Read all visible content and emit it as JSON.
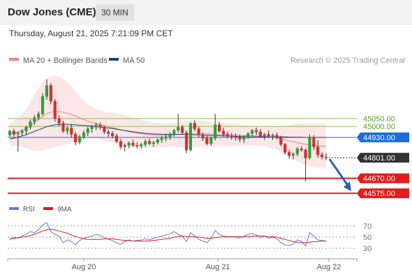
{
  "header": {
    "title": "Dow Jones (CME)",
    "interval": "30 MIN"
  },
  "datetime": "Thursday, August 21, 2025 7:21:09 PM CET",
  "legend": {
    "bollinger_label": "MA 20 + Bollinger Bands",
    "ma50_label": "MA 50",
    "bollinger_color": "#f08080",
    "ma50_color": "#1f3f7f"
  },
  "copyright": "Research © 2025 Trading Central",
  "colors": {
    "up": "#2e9e3e",
    "down": "#d32f2f",
    "resistance": "#8bc34a",
    "support": "#e31b1b",
    "current_tag": "#333333",
    "ma50_tag": "#1a6ce0",
    "arrow": "#2f5fa8"
  },
  "chart_data": [
    {
      "type": "candlestick",
      "x_ticks": [
        "Aug 20",
        "Aug 21",
        "Aug 22"
      ],
      "ylim": [
        44540,
        45360
      ],
      "price_levels": [
        {
          "value": 45050,
          "label": "45050.00",
          "kind": "resistance"
        },
        {
          "value": 45000,
          "label": "45000.00",
          "kind": "resistance"
        },
        {
          "value": 44930,
          "label": "44930.00",
          "kind": "ma50"
        },
        {
          "value": 44801,
          "label": "44801.00",
          "kind": "current"
        },
        {
          "value": 44670,
          "label": "44670.00",
          "kind": "support"
        },
        {
          "value": 44575,
          "label": "44575.00",
          "kind": "support"
        }
      ],
      "candles": [
        [
          44945,
          44978,
          44935,
          44970
        ],
        [
          44970,
          44985,
          44935,
          44950
        ],
        [
          44950,
          44965,
          44840,
          44960
        ],
        [
          44960,
          44982,
          44940,
          44970
        ],
        [
          44970,
          45005,
          44945,
          44995
        ],
        [
          44995,
          45045,
          44980,
          45030
        ],
        [
          45030,
          45070,
          45010,
          45055
        ],
        [
          45055,
          45095,
          45040,
          45080
        ],
        [
          45080,
          45210,
          45070,
          45190
        ],
        [
          45190,
          45300,
          45170,
          45260
        ],
        [
          45260,
          45275,
          45140,
          45160
        ],
        [
          45160,
          45175,
          45030,
          45050
        ],
        [
          45050,
          45070,
          45000,
          45020
        ],
        [
          45020,
          45035,
          44960,
          44970
        ],
        [
          44970,
          45000,
          44950,
          44990
        ],
        [
          44990,
          45015,
          44930,
          44950
        ],
        [
          44950,
          44965,
          44880,
          44900
        ],
        [
          44900,
          44945,
          44885,
          44935
        ],
        [
          44935,
          44975,
          44920,
          44960
        ],
        [
          44960,
          44998,
          44940,
          44985
        ],
        [
          44985,
          45010,
          44960,
          44995
        ],
        [
          44995,
          45025,
          44975,
          45010
        ],
        [
          45010,
          45025,
          44980,
          44995
        ],
        [
          44995,
          45005,
          44950,
          44965
        ],
        [
          44965,
          44980,
          44935,
          44955
        ],
        [
          44955,
          44970,
          44925,
          44940
        ],
        [
          44940,
          44955,
          44895,
          44905
        ],
        [
          44905,
          44920,
          44855,
          44870
        ],
        [
          44870,
          44890,
          44840,
          44880
        ],
        [
          44880,
          44905,
          44860,
          44895
        ],
        [
          44895,
          44915,
          44870,
          44880
        ],
        [
          44880,
          44900,
          44860,
          44875
        ],
        [
          44875,
          44895,
          44858,
          44885
        ],
        [
          44885,
          44918,
          44870,
          44905
        ],
        [
          44905,
          44925,
          44880,
          44890
        ],
        [
          44890,
          44908,
          44870,
          44898
        ],
        [
          44898,
          44922,
          44885,
          44915
        ],
        [
          44915,
          44940,
          44895,
          44925
        ],
        [
          44925,
          44948,
          44905,
          44935
        ],
        [
          44935,
          44965,
          44915,
          44950
        ],
        [
          44950,
          44985,
          44935,
          44975
        ],
        [
          44975,
          45080,
          44960,
          44995
        ],
        [
          44995,
          45010,
          44945,
          44960
        ],
        [
          44960,
          44975,
          44830,
          44850
        ],
        [
          44850,
          45025,
          44840,
          45020
        ],
        [
          45020,
          45038,
          44970,
          44985
        ],
        [
          44985,
          45000,
          44930,
          44945
        ],
        [
          44945,
          44962,
          44908,
          44925
        ],
        [
          44925,
          44942,
          44880,
          44890
        ],
        [
          44890,
          44935,
          44875,
          44925
        ],
        [
          44925,
          45080,
          44910,
          45010
        ],
        [
          45010,
          45028,
          44960,
          44970
        ],
        [
          44970,
          44990,
          44935,
          44950
        ],
        [
          44950,
          44968,
          44925,
          44940
        ],
        [
          44940,
          44958,
          44915,
          44935
        ],
        [
          44935,
          44955,
          44910,
          44928
        ],
        [
          44928,
          44948,
          44900,
          44918
        ],
        [
          44918,
          44942,
          44895,
          44932
        ],
        [
          44932,
          44962,
          44920,
          44955
        ],
        [
          44955,
          44982,
          44940,
          44975
        ],
        [
          44975,
          44992,
          44945,
          44965
        ],
        [
          44965,
          44982,
          44928,
          44940
        ],
        [
          44940,
          44958,
          44915,
          44950
        ],
        [
          44950,
          44972,
          44930,
          44940
        ],
        [
          44940,
          44955,
          44915,
          44945
        ],
        [
          44945,
          44962,
          44918,
          44930
        ],
        [
          44930,
          44940,
          44875,
          44885
        ],
        [
          44885,
          44895,
          44820,
          44835
        ],
        [
          44835,
          44850,
          44795,
          44815
        ],
        [
          44815,
          44835,
          44790,
          44825
        ],
        [
          44825,
          44868,
          44810,
          44858
        ],
        [
          44858,
          44875,
          44840,
          44850
        ],
        [
          44850,
          44860,
          44650,
          44800
        ],
        [
          44800,
          44950,
          44790,
          44930
        ],
        [
          44930,
          44945,
          44850,
          44870
        ],
        [
          44870,
          44912,
          44800,
          44820
        ],
        [
          44820,
          44835,
          44790,
          44805
        ],
        [
          44805,
          44830,
          44785,
          44801
        ]
      ],
      "bollinger": {
        "mid": [
          44952,
          44958,
          44966,
          44975,
          44988,
          45004,
          45024,
          45044,
          45064,
          45080,
          45090,
          45094,
          45094,
          45090,
          45084,
          45076,
          45066,
          45055,
          45044,
          45034,
          45025,
          45017,
          45010,
          45004,
          44998,
          44992,
          44986,
          44979,
          44973,
          44967,
          44962,
          44957,
          44953,
          44950,
          44947,
          44945,
          44944,
          44943,
          44943,
          44944,
          44946,
          44948,
          44950,
          44951,
          44952,
          44953,
          44953,
          44953,
          44952,
          44951,
          44950,
          44949,
          44948,
          44947,
          44946,
          44945,
          44944,
          44943,
          44942,
          44941,
          44940,
          44938,
          44936,
          44933,
          44930,
          44926,
          44921,
          44915,
          44909,
          44903,
          44897,
          44891,
          44886,
          44882,
          44879,
          44877,
          44876,
          44875
        ],
        "width": [
          75,
          80,
          90,
          105,
          125,
          150,
          180,
          200,
          215,
          225,
          230,
          228,
          220,
          210,
          195,
          180,
          160,
          140,
          120,
          108,
          100,
          95,
          92,
          92,
          93,
          95,
          96,
          97,
          98,
          97,
          95,
          92,
          88,
          85,
          82,
          80,
          78,
          76,
          75,
          75,
          76,
          78,
          82,
          86,
          88,
          88,
          86,
          82,
          78,
          75,
          75,
          75,
          75,
          74,
          72,
          70,
          68,
          66,
          64,
          62,
          60,
          60,
          62,
          65,
          70,
          75,
          82,
          90,
          100,
          110,
          120,
          128,
          132,
          135,
          138,
          140,
          142,
          144
        ]
      },
      "ma50": [
        44920,
        44925,
        44932,
        44940,
        44948,
        44958,
        44968,
        44978,
        44988,
        44998,
        45005,
        45010,
        45012,
        45013,
        45013,
        45012,
        45010,
        45008,
        45006,
        45004,
        45002,
        44999,
        44996,
        44993,
        44990,
        44986,
        44982,
        44978,
        44974,
        44970,
        44966,
        44962,
        44959,
        44956,
        44954,
        44952,
        44951,
        44950,
        44950,
        44950,
        44950,
        44950,
        44950,
        44949,
        44948,
        44947,
        44946,
        44945,
        44944,
        44943,
        44942,
        44941,
        44940,
        44939,
        44938,
        44937,
        44936,
        44935,
        44934,
        44934,
        44934,
        44934,
        44934,
        44934,
        44934,
        44934,
        44933,
        44933,
        44932,
        44932,
        44931,
        44931,
        44930,
        44930,
        44930,
        44930,
        44930,
        44930
      ],
      "projection": {
        "from": 44801,
        "to": 44575
      }
    },
    {
      "type": "line",
      "legend": [
        "RSI",
        "9MA"
      ],
      "ylim": [
        20,
        80
      ],
      "y_ticks": [
        70,
        50,
        30
      ],
      "series": [
        {
          "name": "RSI",
          "color": "#5b7fd6",
          "values": [
            45,
            50,
            48,
            52,
            55,
            60,
            58,
            63,
            72,
            76,
            60,
            55,
            52,
            40,
            45,
            42,
            36,
            44,
            48,
            50,
            52,
            55,
            53,
            49,
            46,
            44,
            40,
            37,
            42,
            45,
            43,
            44,
            45,
            47,
            45,
            48,
            50,
            52,
            54,
            56,
            60,
            55,
            52,
            42,
            58,
            52,
            46,
            43,
            40,
            48,
            62,
            55,
            52,
            50,
            51,
            50,
            48,
            52,
            55,
            57,
            54,
            49,
            52,
            48,
            50,
            47,
            40,
            36,
            35,
            38,
            45,
            43,
            34,
            58,
            52,
            45,
            44,
            42
          ]
        },
        {
          "name": "9MA",
          "color": "#e31b1b",
          "values": [
            47,
            48,
            49,
            50,
            51,
            53,
            55,
            58,
            61,
            63,
            64,
            63,
            61,
            59,
            57,
            54,
            51,
            49,
            47,
            46,
            46,
            46,
            46,
            47,
            47,
            47,
            46,
            45,
            44,
            44,
            43,
            43,
            43,
            43,
            43,
            44,
            45,
            46,
            47,
            48,
            50,
            51,
            52,
            51,
            51,
            51,
            50,
            49,
            48,
            48,
            49,
            50,
            51,
            51,
            51,
            51,
            51,
            51,
            51,
            52,
            52,
            52,
            52,
            51,
            51,
            50,
            48,
            46,
            44,
            42,
            41,
            40,
            40,
            41,
            42,
            42,
            43,
            43
          ]
        }
      ]
    }
  ]
}
